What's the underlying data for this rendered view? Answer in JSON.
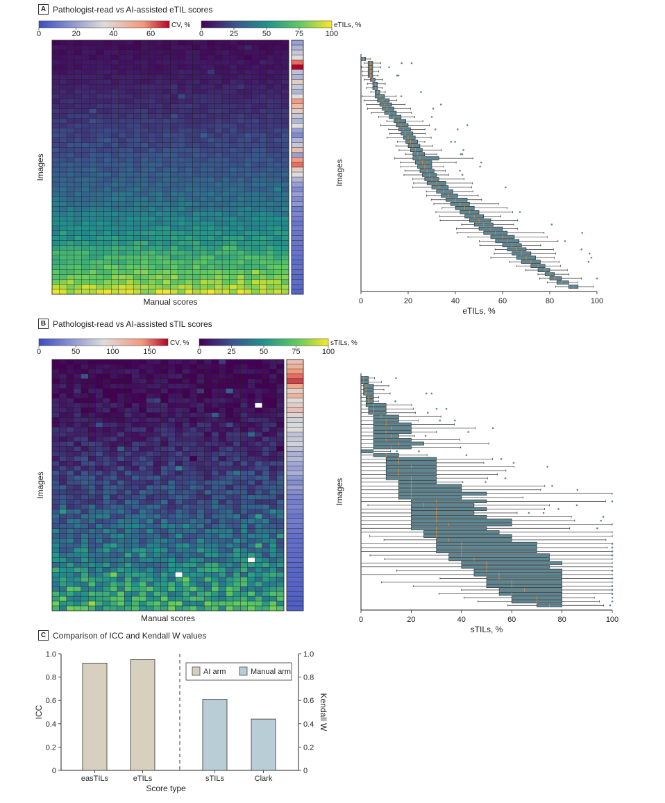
{
  "panels": {
    "a": {
      "letter": "A",
      "title": "Pathologist-read vs AI-assisted eTIL scores"
    },
    "b": {
      "letter": "B",
      "title": "Pathologist-read vs AI-assisted sTIL scores"
    },
    "c": {
      "letter": "C",
      "title": "Comparison of ICC and Kendall W values"
    }
  },
  "chart_data": [
    {
      "id": "heatmap_a",
      "type": "heatmap",
      "ylabel": "Images",
      "xlabel": "Manual scores",
      "rows": 52,
      "cols": 32,
      "value_colorbar": {
        "label": "eTILs, %",
        "ticks": [
          0,
          25,
          50,
          75,
          100
        ],
        "range": [
          0,
          100
        ]
      },
      "cv_colorbar": {
        "label": "CV, %",
        "ticks": [
          0,
          20,
          40,
          60
        ],
        "range": [
          0,
          70
        ]
      },
      "row_mean_pct": [
        3,
        4,
        5,
        5,
        6,
        6,
        7,
        8,
        9,
        10,
        11,
        12,
        13,
        14,
        15,
        16,
        17,
        18,
        19,
        20,
        21,
        22,
        23,
        24,
        25,
        27,
        28,
        29,
        30,
        32,
        33,
        35,
        36,
        38,
        40,
        42,
        44,
        46,
        48,
        50,
        52,
        55,
        58,
        61,
        64,
        67,
        70,
        74,
        78,
        82,
        86,
        90
      ],
      "row_cv_pct": [
        20,
        25,
        30,
        35,
        60,
        70,
        28,
        25,
        40,
        30,
        25,
        35,
        55,
        45,
        40,
        30,
        25,
        35,
        20,
        15,
        25,
        30,
        45,
        20,
        55,
        60,
        40,
        35,
        25,
        20,
        15,
        20,
        15,
        18,
        12,
        14,
        12,
        10,
        12,
        10,
        11,
        10,
        9,
        10,
        9,
        8,
        9,
        8,
        7,
        8,
        7,
        6
      ]
    },
    {
      "id": "boxplot_a",
      "type": "box",
      "ylabel": "Images",
      "xlabel": "eTILs, %",
      "xlim": [
        0,
        100
      ],
      "xticks": [
        0,
        20,
        40,
        60,
        80,
        100
      ],
      "n_boxes": 56,
      "medians": [
        1,
        4,
        4,
        4,
        4,
        5,
        6,
        6,
        7,
        8,
        9,
        10,
        11,
        12,
        14,
        16,
        17,
        18,
        19,
        20,
        21,
        22,
        23,
        24,
        25,
        26,
        27,
        28,
        29,
        30,
        32,
        33,
        35,
        37,
        40,
        42,
        44,
        46,
        48,
        50,
        52,
        55,
        57,
        60,
        62,
        64,
        66,
        68,
        70,
        72,
        75,
        78,
        80,
        82,
        85,
        90
      ],
      "q1": [
        0,
        3,
        3,
        3,
        3,
        4,
        5,
        5,
        6,
        6,
        7,
        8,
        9,
        10,
        12,
        14,
        15,
        16,
        17,
        18,
        19,
        20,
        21,
        22,
        22,
        23,
        24,
        25,
        26,
        27,
        28,
        30,
        32,
        34,
        36,
        38,
        40,
        42,
        44,
        46,
        48,
        50,
        52,
        55,
        57,
        60,
        62,
        64,
        66,
        68,
        72,
        75,
        78,
        80,
        83,
        88
      ],
      "q3": [
        2,
        5,
        5,
        5,
        5,
        6,
        7,
        7,
        8,
        10,
        12,
        13,
        14,
        15,
        17,
        19,
        20,
        21,
        22,
        23,
        24,
        25,
        26,
        27,
        33,
        30,
        30,
        31,
        32,
        33,
        36,
        37,
        39,
        41,
        45,
        46,
        48,
        50,
        52,
        55,
        56,
        60,
        62,
        65,
        67,
        68,
        70,
        72,
        74,
        76,
        78,
        80,
        82,
        85,
        88,
        92
      ]
    },
    {
      "id": "heatmap_b",
      "type": "heatmap",
      "ylabel": "Images",
      "xlabel": "Manual scores",
      "rows": 52,
      "cols": 32,
      "value_colorbar": {
        "label": "sTILs, %",
        "ticks": [
          0,
          25,
          50,
          75,
          100
        ],
        "range": [
          0,
          100
        ]
      },
      "cv_colorbar": {
        "label": "CV, %",
        "ticks": [
          0,
          50,
          100,
          150
        ],
        "range": [
          0,
          175
        ]
      },
      "row_mean_pct": [
        2,
        2,
        3,
        3,
        3,
        4,
        4,
        5,
        5,
        6,
        6,
        7,
        8,
        9,
        10,
        10,
        11,
        12,
        13,
        14,
        15,
        16,
        17,
        18,
        20,
        21,
        22,
        23,
        24,
        25,
        26,
        28,
        30,
        31,
        32,
        34,
        35,
        36,
        38,
        40,
        42,
        43,
        45,
        47,
        48,
        50,
        52,
        54,
        56,
        58,
        60,
        62
      ],
      "row_cv_pct": [
        110,
        120,
        140,
        150,
        160,
        130,
        100,
        120,
        90,
        100,
        110,
        95,
        80,
        85,
        90,
        70,
        75,
        80,
        70,
        60,
        65,
        55,
        50,
        60,
        45,
        40,
        50,
        40,
        35,
        30,
        35,
        30,
        25,
        30,
        28,
        25,
        22,
        20,
        22,
        20,
        18,
        20,
        18,
        16,
        15,
        16,
        14,
        15,
        14,
        13,
        12,
        12
      ]
    },
    {
      "id": "boxplot_b",
      "type": "box",
      "ylabel": "Images",
      "xlabel": "sTILs, %",
      "xlim": [
        0,
        100
      ],
      "xticks": [
        0,
        20,
        40,
        60,
        80,
        100
      ],
      "n_boxes": 60,
      "medians": [
        1,
        1,
        2,
        2,
        2,
        3,
        3,
        5,
        5,
        5,
        8,
        10,
        10,
        12,
        10,
        12,
        10,
        15,
        12,
        5,
        10,
        15,
        15,
        20,
        15,
        15,
        20,
        20,
        20,
        20,
        20,
        20,
        30,
        25,
        30,
        30,
        30,
        30,
        35,
        30,
        30,
        30,
        35,
        40,
        40,
        40,
        40,
        45,
        50,
        50,
        50,
        55,
        55,
        60,
        60,
        65,
        60,
        70,
        70,
        75
      ],
      "q1": [
        0,
        0,
        1,
        1,
        1,
        2,
        2,
        2,
        3,
        3,
        5,
        5,
        5,
        5,
        5,
        5,
        5,
        5,
        5,
        0,
        5,
        10,
        10,
        10,
        10,
        10,
        10,
        15,
        15,
        15,
        15,
        15,
        20,
        20,
        20,
        20,
        20,
        20,
        20,
        20,
        25,
        25,
        30,
        30,
        30,
        30,
        35,
        35,
        40,
        40,
        45,
        45,
        50,
        50,
        50,
        55,
        55,
        60,
        60,
        70
      ],
      "q3": [
        3,
        3,
        5,
        5,
        5,
        5,
        5,
        10,
        10,
        10,
        15,
        15,
        20,
        20,
        20,
        15,
        20,
        25,
        20,
        5,
        15,
        30,
        30,
        30,
        30,
        30,
        30,
        30,
        40,
        40,
        50,
        40,
        50,
        45,
        50,
        45,
        50,
        60,
        60,
        50,
        55,
        60,
        60,
        70,
        70,
        70,
        75,
        75,
        80,
        75,
        80,
        80,
        80,
        80,
        80,
        80,
        80,
        80,
        80,
        80
      ]
    },
    {
      "id": "bar_c",
      "type": "bar",
      "categories": [
        "easTILs",
        "eTILs",
        "sTILs",
        "Clark"
      ],
      "values": [
        0.92,
        0.95,
        0.61,
        0.44
      ],
      "groups": [
        "AI arm",
        "AI arm",
        "Manual arm",
        "Manual arm"
      ],
      "colors": {
        "AI arm": "#d8d0bf",
        "Manual arm": "#b9cdd6"
      },
      "xlabel": "Score type",
      "ylabel": "ICC",
      "ylabel_right": "Kendall W",
      "ylim": [
        0,
        1.0
      ],
      "yticks": [
        0,
        0.2,
        0.4,
        0.6,
        0.8,
        1.0
      ],
      "legend": [
        "AI arm",
        "Manual arm"
      ],
      "legend_position": "top-right"
    }
  ]
}
